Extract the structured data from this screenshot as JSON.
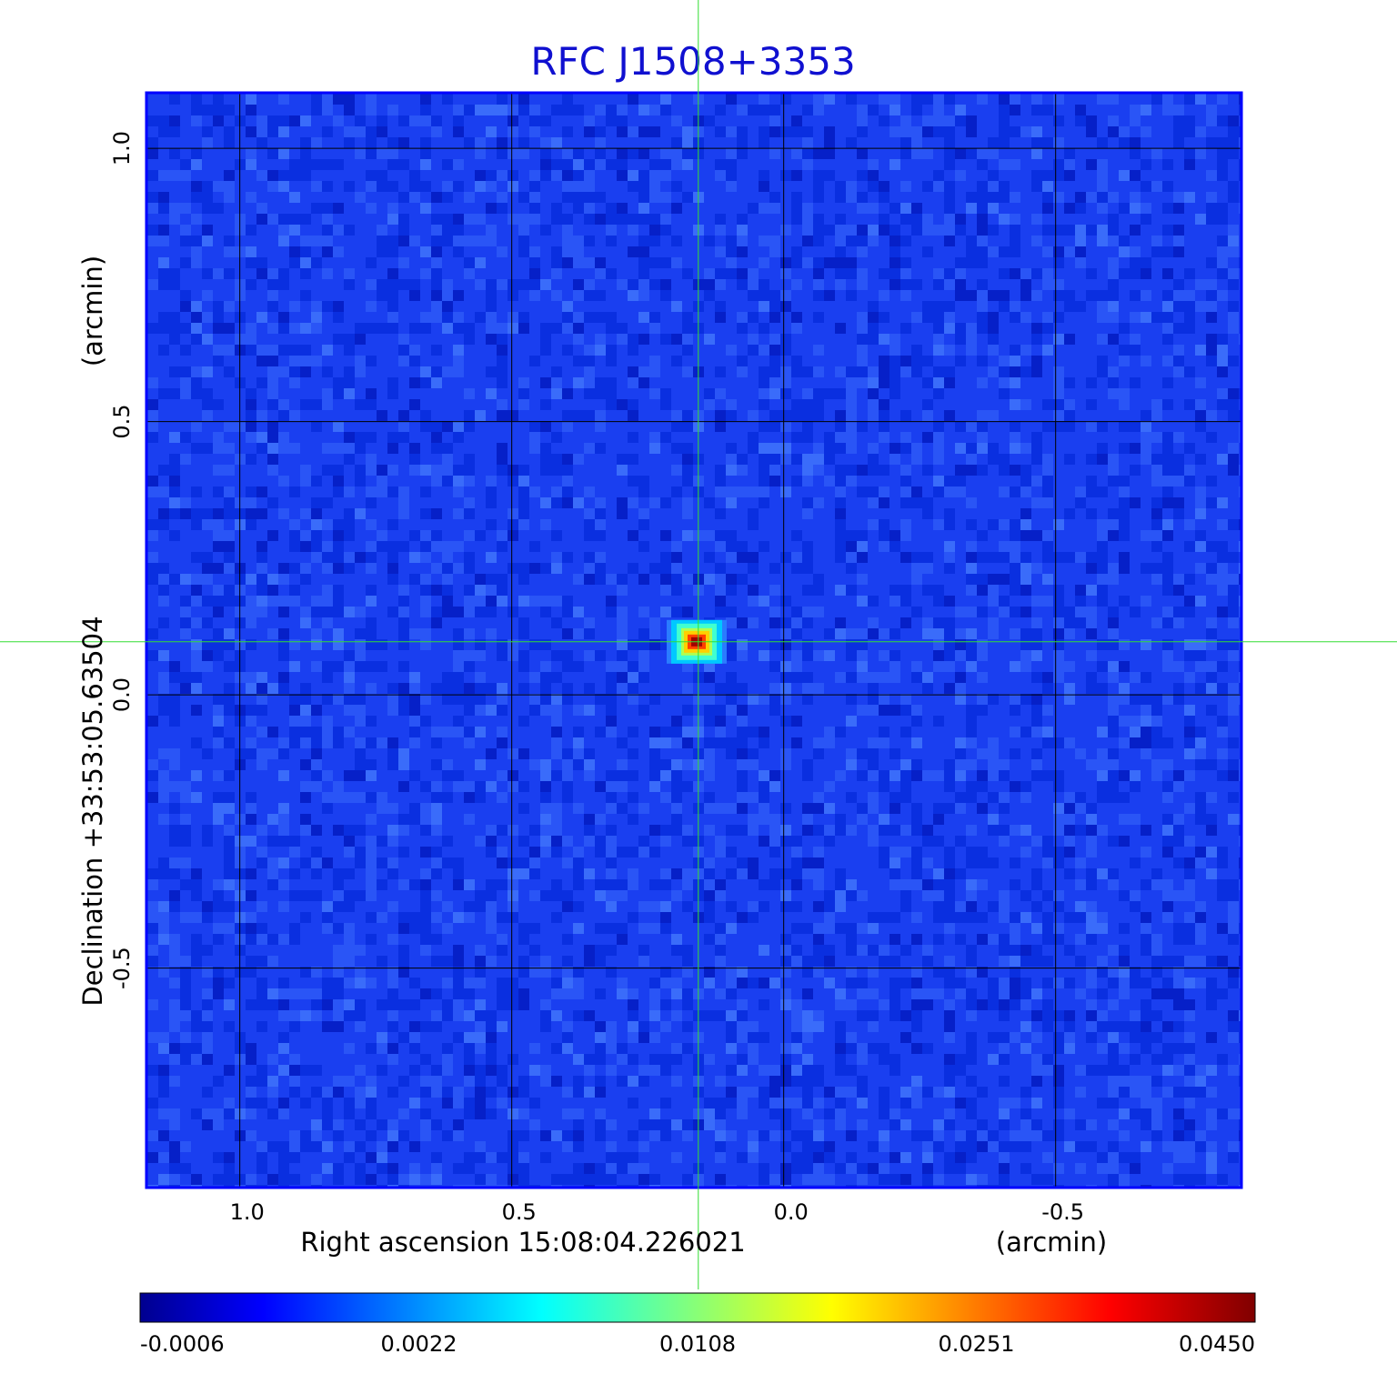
{
  "chart_data": {
    "type": "heatmap",
    "title": "RFC J1508+3353",
    "title_color": "#1010d0",
    "xlabel": "Right ascension  15:08:04.226021",
    "xunit": "(arcmin)",
    "ylabel": "Declination  +33:53:05.63504",
    "yunit": "(arcmin)",
    "xlim": [
      1.17,
      -0.84
    ],
    "ylim": [
      -0.9,
      1.1
    ],
    "x_ticks": [
      1.0,
      0.5,
      0.0,
      -0.5
    ],
    "x_tick_labels": [
      "1.0",
      "0.5",
      "0.0",
      "-0.5"
    ],
    "y_ticks": [
      1.0,
      0.5,
      0.0,
      -0.5
    ],
    "y_tick_labels": [
      "1.0",
      "0.5",
      "0.0",
      "-0.5"
    ],
    "grid": true,
    "grid_color": "#000000",
    "crosshair": {
      "x": 0.157,
      "y": 0.097,
      "color": "#33dd33"
    },
    "source_peak": {
      "x": 0.16,
      "y": 0.097,
      "value": 0.045
    },
    "colorbar": {
      "ticks": [
        -0.0006,
        0.0022,
        0.0108,
        0.0251,
        0.045
      ],
      "tick_labels": [
        "-0.0006",
        "0.0022",
        "0.0108",
        "0.0251",
        "0.0450"
      ],
      "colormap": "jet",
      "colors": [
        "#00008f",
        "#0000ff",
        "#00ffff",
        "#ffff00",
        "#ff0000",
        "#800000"
      ]
    },
    "background_color": "#1a3ff0"
  }
}
